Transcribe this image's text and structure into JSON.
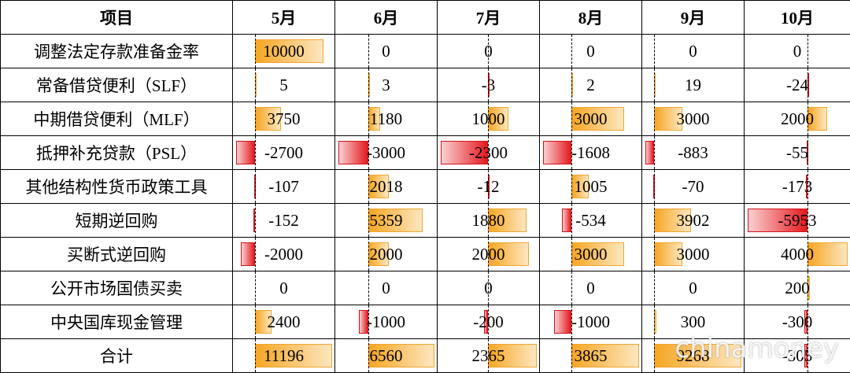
{
  "table": {
    "header": [
      "项目",
      "5月",
      "6月",
      "7月",
      "8月",
      "9月",
      "10月"
    ],
    "rows": [
      [
        "调整法定存款准备金率",
        10000,
        0,
        0,
        0,
        0,
        0
      ],
      [
        "常备借贷便利（SLF）",
        5,
        3,
        -3,
        2,
        19,
        -24
      ],
      [
        "中期借贷便利（MLF）",
        3750,
        1180,
        1000,
        3000,
        3000,
        2000
      ],
      [
        "抵押补充贷款（PSL）",
        -2700,
        -3000,
        -2300,
        -1608,
        -883,
        -55
      ],
      [
        "其他结构性货币政策工具",
        -107,
        2018,
        -12,
        1005,
        -70,
        -173
      ],
      [
        "短期逆回购",
        -152,
        5359,
        1880,
        -534,
        3902,
        -5953
      ],
      [
        "买断式逆回购",
        -2000,
        2000,
        2000,
        3000,
        3000,
        4000
      ],
      [
        "公开市场国债买卖",
        0,
        0,
        0,
        0,
        0,
        200
      ],
      [
        "中央国库现金管理",
        2400,
        -1000,
        -200,
        -1000,
        300,
        -300
      ],
      [
        "合计",
        11196,
        6560,
        2365,
        3865,
        9268,
        -305
      ]
    ]
  },
  "watermark": "chinamoney"
}
